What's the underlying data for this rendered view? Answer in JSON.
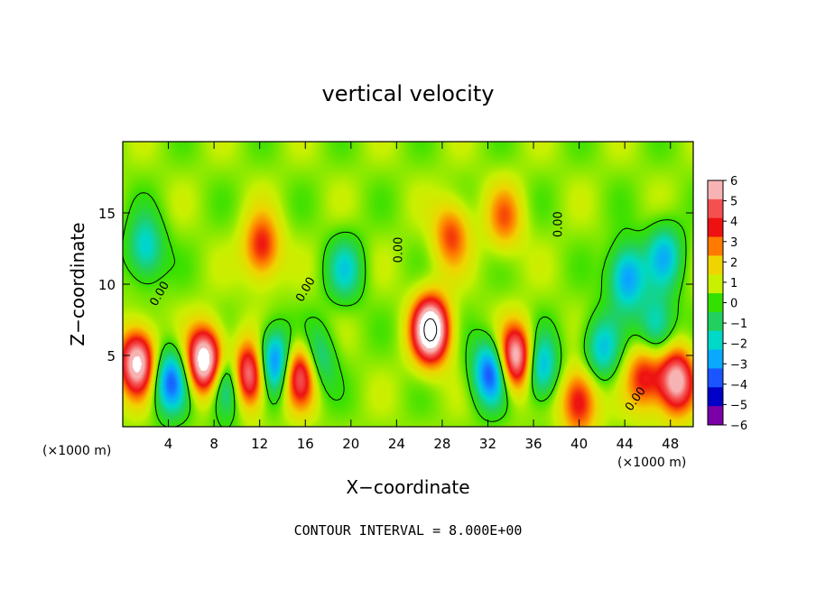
{
  "chart_data": {
    "type": "heatmap",
    "title": "vertical velocity",
    "xlabel": "X−coordinate",
    "ylabel": "Z−coordinate",
    "x_unit": "(×1000 m)",
    "x_unit_right": "(×1000 m)",
    "xlim": [
      0,
      50
    ],
    "ylim": [
      0,
      20
    ],
    "x_ticks": [
      4,
      8,
      12,
      16,
      20,
      24,
      28,
      32,
      36,
      40,
      44,
      48
    ],
    "y_ticks": [
      5,
      10,
      15
    ],
    "colorbar": {
      "ticks": [
        6,
        5,
        4,
        3,
        2,
        1,
        0,
        -1,
        -2,
        -3,
        -4,
        -5,
        -6
      ],
      "tick_labels": [
        "6",
        "5",
        "4",
        "3",
        "2",
        "1",
        "0",
        "−1",
        "−2",
        "−3",
        "−4",
        "−5",
        "−6"
      ],
      "colors": [
        "#f7b3b3",
        "#f55050",
        "#ee1111",
        "#ff7a00",
        "#f0d400",
        "#c8f000",
        "#33e000",
        "#22d060",
        "#00d8c8",
        "#0aa8ff",
        "#1a55ff",
        "#0000c8",
        "#7a00a8"
      ]
    },
    "contour_label": "0.00",
    "contour_interval_text": "CONTOUR INTERVAL = 8.000E+00",
    "features": [
      {
        "name": "updraft",
        "x": 1.3,
        "z": 4.5,
        "amp": 6.5
      },
      {
        "name": "updraft",
        "x": 7.2,
        "z": 4.6,
        "amp": 7.5
      },
      {
        "name": "updraft",
        "x": 11.0,
        "z": 3.6,
        "amp": 6.5
      },
      {
        "name": "updraft",
        "x": 15.7,
        "z": 3.8,
        "amp": 6.5
      },
      {
        "name": "updraft",
        "x": 27.0,
        "z": 6.8,
        "amp": 8.0
      },
      {
        "name": "updraft",
        "x": 34.5,
        "z": 4.8,
        "amp": 6.8
      },
      {
        "name": "updraft",
        "x": 48.5,
        "z": 3.2,
        "amp": 6.0
      },
      {
        "name": "updraft",
        "x": 40.0,
        "z": 1.8,
        "amp": 4.0
      },
      {
        "name": "updraft",
        "x": 45.7,
        "z": 3.5,
        "amp": 3.5
      },
      {
        "name": "updraft",
        "x": 12.2,
        "z": 12.6,
        "amp": 3.6
      },
      {
        "name": "updraft",
        "x": 28.8,
        "z": 13.5,
        "amp": 3.0
      },
      {
        "name": "updraft",
        "x": 33.5,
        "z": 14.6,
        "amp": 2.5
      },
      {
        "name": "downdraft",
        "x": 4.2,
        "z": 3.2,
        "amp": -4.5
      },
      {
        "name": "downdraft",
        "x": 9.2,
        "z": 3.0,
        "amp": -4.5
      },
      {
        "name": "downdraft",
        "x": 13.3,
        "z": 4.5,
        "amp": -5.0
      },
      {
        "name": "downdraft",
        "x": 16.8,
        "z": 4.5,
        "amp": -4.0
      },
      {
        "name": "downdraft",
        "x": 32.3,
        "z": 3.8,
        "amp": -5.0
      },
      {
        "name": "downdraft",
        "x": 36.5,
        "z": 4.2,
        "amp": -4.0
      },
      {
        "name": "downdraft",
        "x": 44.2,
        "z": 10.5,
        "amp": -4.0
      },
      {
        "name": "downdraft",
        "x": 47.5,
        "z": 12.0,
        "amp": -3.0
      },
      {
        "name": "downdraft",
        "x": 2.0,
        "z": 12.5,
        "amp": -3.0
      },
      {
        "name": "downdraft",
        "x": 19.5,
        "z": 11.0,
        "amp": -2.5
      },
      {
        "name": "downdraft",
        "x": 42.0,
        "z": 5.5,
        "amp": -3.0
      },
      {
        "name": "downdraft",
        "x": 46.8,
        "z": 7.0,
        "amp": -3.0
      }
    ]
  }
}
